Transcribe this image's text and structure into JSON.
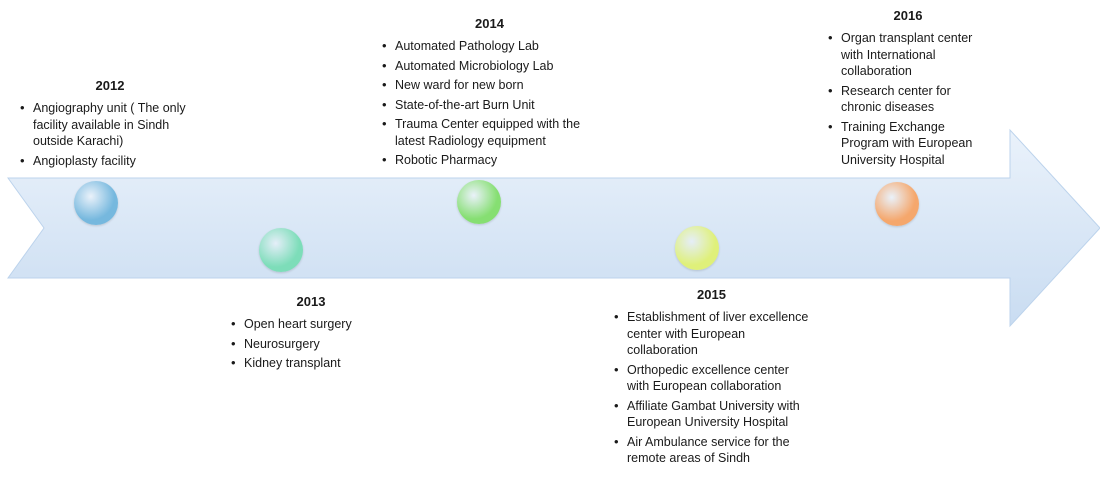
{
  "colors": {
    "arrow_fill_top": "#eaf2fb",
    "arrow_fill_bottom": "#c9dcf1",
    "arrow_border": "#bcd3ec"
  },
  "milestones": [
    {
      "year": "2012",
      "color": "#76b8de",
      "items": [
        "Angiography unit ( The only facility available in Sindh outside Karachi)",
        "Angioplasty facility"
      ]
    },
    {
      "year": "2013",
      "color": "#7dddb9",
      "items": [
        "Open heart surgery",
        "Neurosurgery",
        "Kidney transplant"
      ]
    },
    {
      "year": "2014",
      "color": "#86df72",
      "items": [
        "Automated Pathology Lab",
        "Automated Microbiology Lab",
        "New ward for new born",
        "State-of-the-art Burn Unit",
        "Trauma Center equipped with the latest Radiology equipment",
        "Robotic Pharmacy"
      ]
    },
    {
      "year": "2015",
      "color": "#dff07a",
      "items": [
        "Establishment of liver excellence center with European collaboration",
        "Orthopedic excellence center with European collaboration",
        "Affiliate Gambat University with European University Hospital",
        "Air Ambulance service for the remote areas of Sindh"
      ]
    },
    {
      "year": "2016",
      "color": "#f5a76c",
      "items": [
        "Organ transplant center with International collaboration",
        "Research center for chronic diseases",
        "Training Exchange Program with European University Hospital"
      ]
    }
  ]
}
